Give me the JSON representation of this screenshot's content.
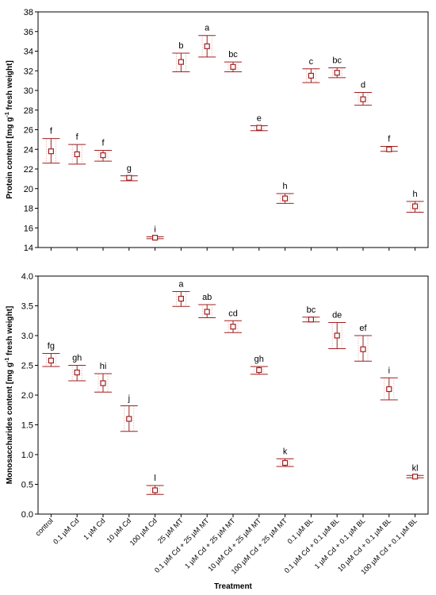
{
  "chart_data": [
    {
      "type": "scatter",
      "ylabel": "Protein content [mg g",
      "ylabel_sup": "-1",
      "ylabel_tail": " fresh weight]",
      "ylim": [
        14,
        38
      ],
      "yticks": [
        "14",
        "16",
        "18",
        "20",
        "22",
        "24",
        "26",
        "28",
        "30",
        "32",
        "34",
        "36",
        "38"
      ],
      "grid": false,
      "colors": {
        "marker": "#a02020",
        "box": "#e8b0b0"
      },
      "series": [
        {
          "values": [
            23.8,
            23.5,
            23.4,
            21.1,
            15.0,
            32.9,
            34.5,
            32.4,
            26.2,
            19.0,
            31.5,
            31.8,
            29.1,
            24.0,
            18.2
          ],
          "upper": [
            25.1,
            24.5,
            23.9,
            21.3,
            15.1,
            33.8,
            35.6,
            32.9,
            26.4,
            19.5,
            32.2,
            32.3,
            29.8,
            24.3,
            18.7
          ],
          "lower": [
            22.6,
            22.5,
            22.8,
            20.8,
            14.9,
            31.9,
            33.4,
            31.9,
            25.9,
            18.5,
            30.8,
            31.3,
            28.5,
            23.8,
            17.6
          ],
          "letters": [
            "f",
            "f",
            "f",
            "g",
            "i",
            "b",
            "a",
            "bc",
            "e",
            "h",
            "c",
            "bc",
            "d",
            "f",
            "h"
          ]
        }
      ]
    },
    {
      "type": "scatter",
      "ylabel": "Monosaccharides content [mg g",
      "ylabel_sup": "-1",
      "ylabel_tail": " fresh weight]",
      "xlabel": "Treatment",
      "ylim": [
        0.0,
        4.0
      ],
      "yticks": [
        "0.0",
        "0.5",
        "1.0",
        "1.5",
        "2.0",
        "2.5",
        "3.0",
        "3.5",
        "4.0"
      ],
      "grid": false,
      "colors": {
        "marker": "#a02020",
        "box": "#e8b0b0"
      },
      "categories": [
        "control",
        "0.1 µM Cd",
        "1 µM Cd",
        "10 µM Cd",
        "100 µM Cd",
        "25 µM MT",
        "0.1 µM Cd + 25 µM MT",
        "1 µM Cd + 25 µM MT",
        "10 µM Cd + 25 µM MT",
        "100 µM Cd + 25 µM MT",
        "0.1 µM BL",
        "0.1 µM Cd + 0.1 µM BL",
        "1 µM Cd + 0.1 µM BL",
        "10 µM Cd + 0.1 µM BL",
        "100 µM Cd + 0.1 µM BL"
      ],
      "series": [
        {
          "values": [
            2.58,
            2.38,
            2.2,
            1.6,
            0.4,
            3.62,
            3.4,
            3.15,
            2.42,
            0.86,
            3.27,
            3.0,
            2.77,
            2.1,
            0.63
          ],
          "upper": [
            2.7,
            2.5,
            2.36,
            1.82,
            0.48,
            3.74,
            3.52,
            3.25,
            2.48,
            0.93,
            3.31,
            3.22,
            3.0,
            2.29,
            0.65
          ],
          "lower": [
            2.48,
            2.24,
            2.05,
            1.39,
            0.33,
            3.49,
            3.3,
            3.05,
            2.35,
            0.8,
            3.23,
            2.78,
            2.57,
            1.92,
            0.61
          ],
          "letters": [
            "fg",
            "gh",
            "hi",
            "j",
            "l",
            "a",
            "ab",
            "cd",
            "gh",
            "k",
            "bc",
            "de",
            "ef",
            "i",
            "kl"
          ]
        }
      ]
    }
  ]
}
